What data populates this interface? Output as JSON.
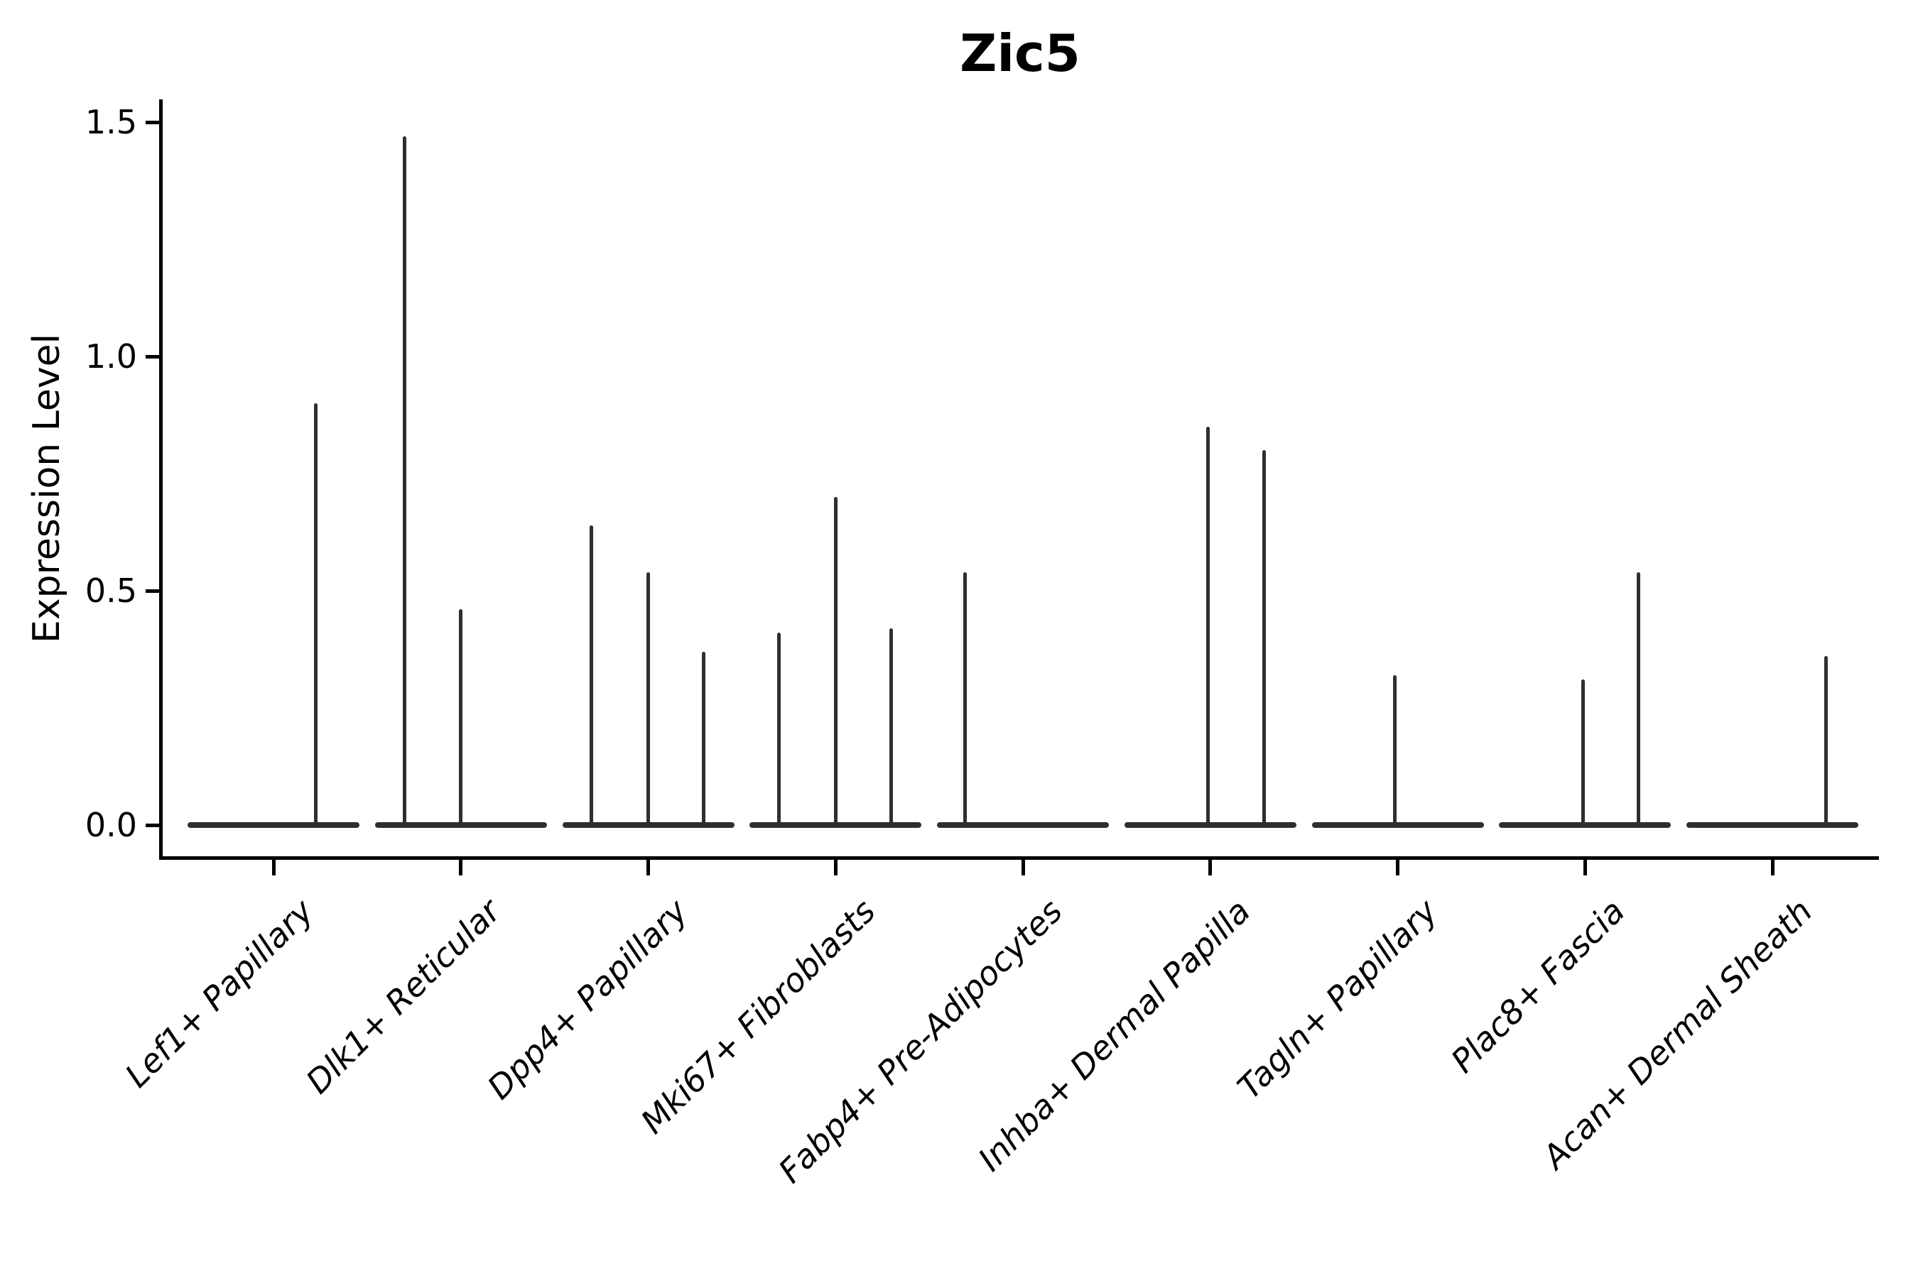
{
  "title": "Zic5",
  "y_axis": {
    "label": "Expression Level",
    "tick_labels": [
      "1.5",
      "1.0",
      "0.5",
      "0.0"
    ],
    "tick_values": [
      1.5,
      1.0,
      0.5,
      0.0
    ]
  },
  "x_axis": {
    "categories": [
      "Lef1+ Papillary",
      "Dlk1+ Reticular",
      "Dpp4+ Papillary",
      "Mki67+ Fibroblasts",
      "Fabp4+ Pre-Adipocytes",
      "Inhba+ Dermal Papilla",
      "Tagln+ Papillary",
      "Plac8+ Fascia",
      "Acan+ Dermal Sheath"
    ]
  },
  "style": {
    "violin_color": "#2f2f2f",
    "axis_color": "#000000",
    "background": "#ffffff"
  },
  "chart_data": {
    "type": "violin",
    "title": "Zic5",
    "xlabel": "",
    "ylabel": "Expression Level",
    "ylim": [
      -0.07,
      1.55
    ],
    "yticks": [
      0.0,
      0.5,
      1.0,
      1.5
    ],
    "grid": false,
    "legend": "none",
    "note": "Seurat-style violin plot; bulk of cells at expression 0 (flat body at baseline), sparse expressing cells appear as thin vertical spikes",
    "categories": [
      "Lef1+ Papillary",
      "Dlk1+ Reticular",
      "Dpp4+ Papillary",
      "Mki67+ Fibroblasts",
      "Fabp4+ Pre-Adipocytes",
      "Inhba+ Dermal Papilla",
      "Tagln+ Papillary",
      "Plac8+ Fascia",
      "Acan+ Dermal Sheath"
    ],
    "violins": [
      {
        "category": "Lef1+ Papillary",
        "baseline_value": 0.0,
        "spikes": [
          {
            "dx": 59,
            "value": 0.9
          }
        ]
      },
      {
        "category": "Dlk1+ Reticular",
        "baseline_value": 0.0,
        "spikes": [
          {
            "dx": -79,
            "value": 1.47
          },
          {
            "dx": 0,
            "value": 0.46
          }
        ]
      },
      {
        "category": "Dpp4+ Papillary",
        "baseline_value": 0.0,
        "spikes": [
          {
            "dx": -80,
            "value": 0.64
          },
          {
            "dx": 0,
            "value": 0.54
          },
          {
            "dx": 78,
            "value": 0.37
          }
        ]
      },
      {
        "category": "Mki67+ Fibroblasts",
        "baseline_value": 0.0,
        "spikes": [
          {
            "dx": -80,
            "value": 0.41
          },
          {
            "dx": 0,
            "value": 0.7
          },
          {
            "dx": 78,
            "value": 0.42
          }
        ]
      },
      {
        "category": "Fabp4+ Pre-Adipocytes",
        "baseline_value": 0.0,
        "spikes": [
          {
            "dx": -82,
            "value": 0.54
          }
        ]
      },
      {
        "category": "Inhba+ Dermal Papilla",
        "baseline_value": 0.0,
        "spikes": [
          {
            "dx": -3,
            "value": 0.85
          },
          {
            "dx": 76,
            "value": 0.8
          }
        ]
      },
      {
        "category": "Tagln+ Papillary",
        "baseline_value": 0.0,
        "spikes": [
          {
            "dx": -4,
            "value": 0.32
          }
        ]
      },
      {
        "category": "Plac8+ Fascia",
        "baseline_value": 0.0,
        "spikes": [
          {
            "dx": -3,
            "value": 0.31
          },
          {
            "dx": 75,
            "value": 0.54
          }
        ]
      },
      {
        "category": "Acan+ Dermal Sheath",
        "baseline_value": 0.0,
        "spikes": [
          {
            "dx": 75,
            "value": 0.36
          }
        ]
      }
    ]
  }
}
